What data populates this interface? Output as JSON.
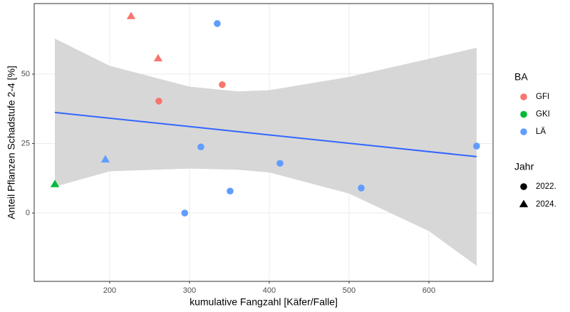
{
  "chart_data": {
    "type": "scatter",
    "x_label": "kumulative Fangzahl [Käfer/Falle]",
    "y_label": "Anteil Pflanzen Schadstufe 2-4 [%]",
    "xlim": [
      105.4,
      680.4
    ],
    "ylim": [
      -24.6,
      75.4
    ],
    "xticks": [
      200,
      300,
      400,
      500,
      600
    ],
    "yticks": [
      0,
      25,
      50
    ],
    "grid": true,
    "color_legend_title": "BA",
    "shape_legend_title": "Jahr",
    "shape_legend": [
      {
        "label": "2022.",
        "shape": "circle"
      },
      {
        "label": "2024.",
        "shape": "triangle"
      }
    ],
    "series": [
      {
        "name": "GFI",
        "color": "#F8766D",
        "x": [
          226.8,
          260.7,
          261.6,
          341
        ],
        "values": [
          70.8,
          55.6,
          40.3,
          46.2
        ],
        "shapes": [
          "triangle",
          "triangle",
          "circle",
          "circle"
        ]
      },
      {
        "name": "GKI",
        "color": "#00BA38",
        "x": [
          131.3
        ],
        "values": [
          10.3
        ],
        "shapes": [
          "triangle"
        ]
      },
      {
        "name": "LÄ",
        "color": "#619CFF",
        "x": [
          334.8,
          194.6,
          314.3,
          294,
          350.9,
          413.4,
          515.2,
          659.8
        ],
        "values": [
          68.2,
          19.2,
          23.8,
          0,
          7.9,
          17.9,
          9,
          24.1
        ],
        "shapes": [
          "circle",
          "triangle",
          "circle",
          "circle",
          "circle",
          "circle",
          "circle",
          "circle"
        ]
      }
    ],
    "fit": {
      "color": "#3366FF",
      "x": [
        131.3,
        659.8
      ],
      "y": [
        36.2,
        20.3
      ]
    },
    "band": {
      "color": "#d3d3d3",
      "x": [
        131.3,
        200,
        300,
        360,
        400,
        500,
        600,
        659.8
      ],
      "upper": [
        62.8,
        53,
        45.5,
        43.8,
        44.2,
        49,
        55.5,
        59.5
      ],
      "lower": [
        9.5,
        15,
        16,
        15.6,
        14.6,
        7,
        -6.5,
        -19
      ]
    }
  }
}
